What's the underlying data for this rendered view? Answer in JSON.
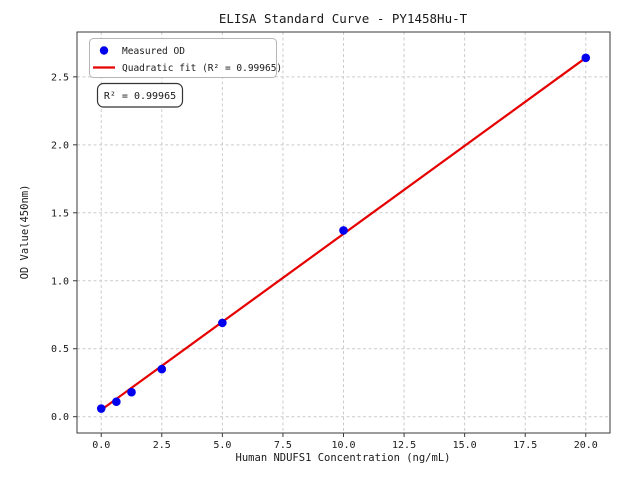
{
  "figure": {
    "background": "#ffffff",
    "title": "ELISA Standard Curve - PY1458Hu-T"
  },
  "chart_data": {
    "type": "scatter",
    "title": "ELISA Standard Curve - PY1458Hu-T",
    "xlabel": "Human NDUFS1 Concentration (ng/mL)",
    "ylabel": "OD Value(450nm)",
    "xlim": [
      -1,
      21
    ],
    "ylim": [
      -0.12,
      2.83
    ],
    "x_ticks": [
      0,
      2.5,
      5,
      7.5,
      10,
      12.5,
      15,
      17.5,
      20
    ],
    "x_tick_labels": [
      "0.0",
      "2.5",
      "5.0",
      "7.5",
      "10.0",
      "12.5",
      "15.0",
      "17.5",
      "20.0"
    ],
    "y_ticks": [
      0,
      0.5,
      1,
      1.5,
      2,
      2.5
    ],
    "y_tick_labels": [
      "0.0",
      "0.5",
      "1.0",
      "1.5",
      "2.0",
      "2.5"
    ],
    "grid": true,
    "grid_style": "dashed",
    "legend_position": "upper left",
    "series": [
      {
        "name": "Measured OD",
        "type": "scatter",
        "color": "#0000ee",
        "x": [
          0,
          0.625,
          1.25,
          2.5,
          5,
          10,
          20
        ],
        "y": [
          0.06,
          0.11,
          0.18,
          0.35,
          0.69,
          1.37,
          2.64
        ]
      },
      {
        "name": "Quadratic fit (R² = 0.99965)",
        "type": "line",
        "color": "#e60000",
        "x": [
          0,
          20
        ],
        "y": [
          0.05,
          2.64
        ]
      }
    ],
    "annotation": "R² = 0.99965"
  },
  "legend": {
    "measured_label": "Measured OD",
    "fit_label": "Quadratic fit (R² = 0.99965)"
  },
  "annotation": {
    "r_squared": "R² = 0.99965"
  },
  "colors": {
    "scatter": "#0000ee",
    "fit_line": "#e60000",
    "grid": "#cccccc",
    "spine": "#3a3a3a",
    "legend_border": "#b5b5b5",
    "annotation_border": "#333333"
  }
}
